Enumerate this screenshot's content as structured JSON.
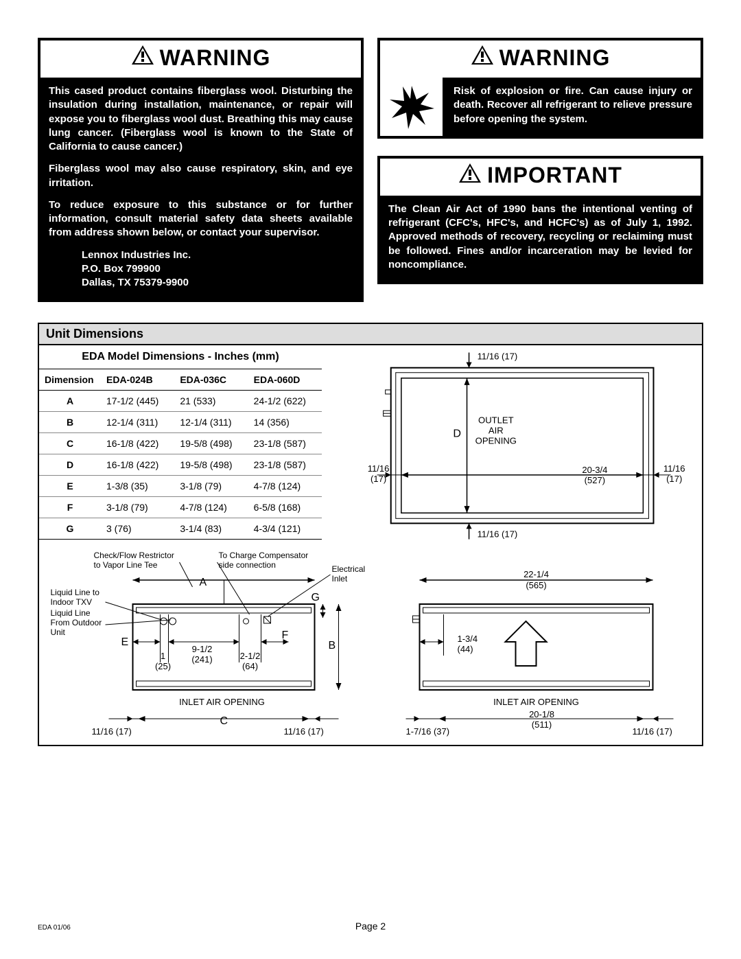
{
  "warning1": {
    "title": "WARNING",
    "paragraphs": [
      "This cased product contains fiberglass wool. Disturbing the insulation during installation, maintenance, or repair will expose you to fiberglass wool dust. Breathing this may cause lung cancer. (Fiberglass wool is known to the State of California to cause cancer.)",
      "Fiberglass wool may also cause respiratory, skin, and eye irritation.",
      "To reduce exposure to this substance or for further information, consult material safety data sheets available from address shown below, or contact your supervisor."
    ],
    "address": [
      "Lennox Industries Inc.",
      "P.O. Box 799900",
      "Dallas, TX 75379-9900"
    ]
  },
  "warning2": {
    "title": "WARNING",
    "text": "Risk of explosion or fire. Can cause injury or death. Recover all refrigerant to relieve pressure before opening the system."
  },
  "important": {
    "title": "IMPORTANT",
    "text": "The Clean Air Act of 1990 bans the intentional venting of refrigerant (CFC's, HFC's, and HCFC's) as of July 1, 1992. Approved methods of recovery, recycling or reclaiming must be followed. Fines and/or incarceration may be levied for noncompliance."
  },
  "section_title": "Unit Dimensions",
  "table": {
    "title": "EDA Model Dimensions - Inches (mm)",
    "columns": [
      "Dimension",
      "EDA-024B",
      "EDA-036C",
      "EDA-060D"
    ],
    "rows": [
      [
        "A",
        "17-1/2 (445)",
        "21 (533)",
        "24-1/2 (622)"
      ],
      [
        "B",
        "12-1/4 (311)",
        "12-1/4 (311)",
        "14 (356)"
      ],
      [
        "C",
        "16-1/8 (422)",
        "19-5/8 (498)",
        "23-1/8 (587)"
      ],
      [
        "D",
        "16-1/8 (422)",
        "19-5/8 (498)",
        "23-1/8 (587)"
      ],
      [
        "E",
        "1-3/8 (35)",
        "3-1/8 (79)",
        "4-7/8 (124)"
      ],
      [
        "F",
        "3-1/8 (79)",
        "4-7/8 (124)",
        "6-5/8 (168)"
      ],
      [
        "G",
        "3 (76)",
        "3-1/4 (83)",
        "4-3/4 (121)"
      ]
    ]
  },
  "diagram_top": {
    "labels": {
      "top": "11/16 (17)",
      "outlet": "OUTLET AIR OPENING",
      "d": "D",
      "left_edge": "11/16 (17)",
      "right_edge": "11/16 (17)",
      "width": "20-3/4 (527)",
      "bottom": "11/16 (17)"
    }
  },
  "diagram_bl": {
    "labels": {
      "check_flow": "Check/Flow Restrictor to Vapor Line Tee",
      "charge_comp": "To Charge Compensator side connection",
      "liquid_txv": "Liquid Line to Indoor TXV",
      "liquid_out": "Liquid Line From Outdoor Unit",
      "a": "A",
      "b": "B",
      "c": "C",
      "e": "E",
      "f": "F",
      "g": "G",
      "d1": "1 (25)",
      "d2": "9-1/2 (241)",
      "d3": "2-1/2 (64)",
      "inlet": "INLET AIR OPENING",
      "edge": "11/16 (17)",
      "electrical": "Electrical Inlet"
    }
  },
  "diagram_br": {
    "labels": {
      "top": "22-1/4 (565)",
      "d1": "1-3/4 (44)",
      "inlet": "INLET AIR OPENING",
      "width": "20-1/8 (511)",
      "left_edge": "1-7/16 (37)",
      "right_edge": "11/16 (17)"
    }
  },
  "footer": {
    "docid": "EDA 01/06",
    "page": "Page 2"
  },
  "colors": {
    "border": "#000000",
    "header_bg": "#dddddd",
    "body_bg": "#000000",
    "body_fg": "#ffffff"
  }
}
